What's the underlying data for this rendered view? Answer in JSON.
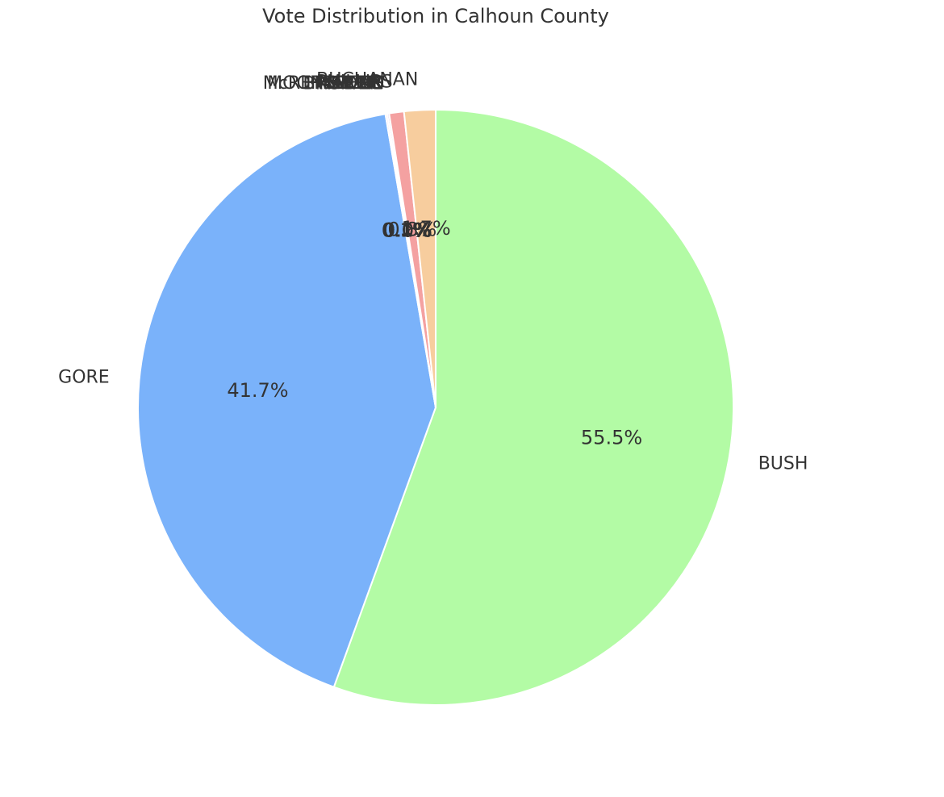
{
  "chart_data": {
    "type": "pie",
    "title": "Vote Distribution in Calhoun County",
    "start_angle_deg": 90,
    "direction": "clockwise",
    "slices": [
      {
        "label": "BUSH",
        "value": 55.5,
        "pct_text": "55.5%",
        "color": "#b3fba5"
      },
      {
        "label": "GORE",
        "value": 41.7,
        "pct_text": "41.7%",
        "color": "#7ab2fa"
      },
      {
        "label": "NADER",
        "value": 0.1,
        "pct_text": "0.1%",
        "color": "#f4c6e6"
      },
      {
        "label": "BROWNE",
        "value": 0.1,
        "pct_text": "0.1%",
        "color": "#c9b8f0"
      },
      {
        "label": "HAGELIN",
        "value": 0.0,
        "pct_text": "0.0%",
        "color": "#f6e6a6"
      },
      {
        "label": "HARRIS",
        "value": 0.0,
        "pct_text": "0.0%",
        "color": "#a6e6e6"
      },
      {
        "label": "McREYNOLDS",
        "value": 0.0,
        "pct_text": "0.0%",
        "color": "#d6d6d6"
      },
      {
        "label": "MOOREHEAD",
        "value": 0.0,
        "pct_text": "0.0%",
        "color": "#f0c0a0"
      },
      {
        "label": "PHILLIPS",
        "value": 0.8,
        "pct_text": "0.8%",
        "color": "#f4a1a1"
      },
      {
        "label": "BUCHANAN",
        "value": 1.7,
        "pct_text": "1.7%",
        "color": "#f7cd9e"
      }
    ]
  }
}
